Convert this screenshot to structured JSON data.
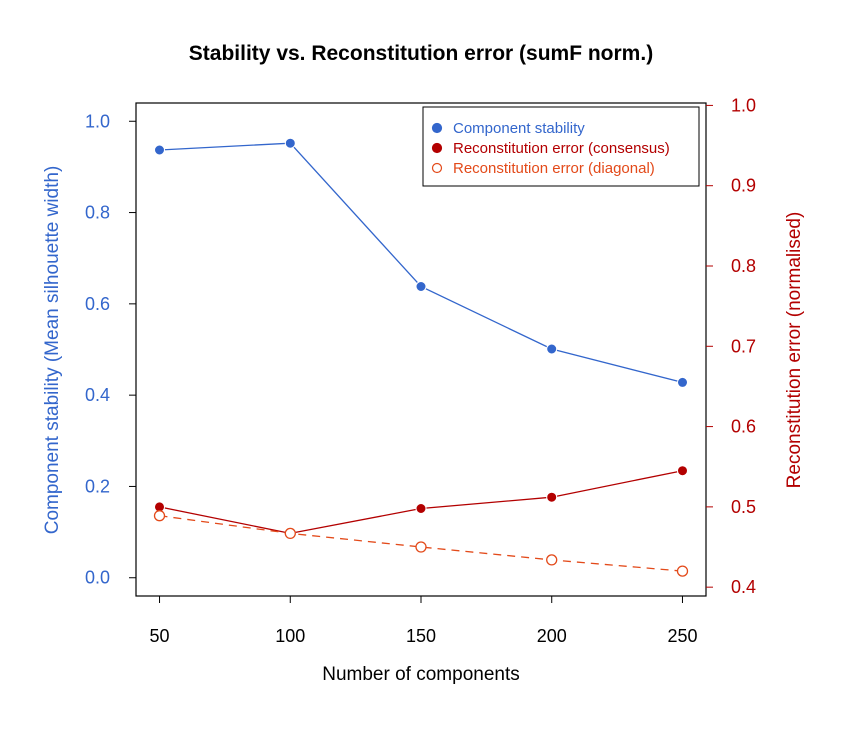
{
  "chart_data": {
    "type": "line",
    "title": "Stability vs. Reconstitution error (sumF norm.)",
    "xlabel": "Number of components",
    "ylabel_left": "Component stability  (Mean silhouette width)",
    "ylabel_right": "Reconstitution error  (normalised)",
    "x": [
      50,
      100,
      150,
      200,
      250
    ],
    "x_ticks": [
      "50",
      "100",
      "150",
      "200",
      "250"
    ],
    "y_left_ticks": [
      "0.0",
      "0.2",
      "0.4",
      "0.6",
      "0.8",
      "1.0"
    ],
    "y_left_tick_values": [
      0.0,
      0.2,
      0.4,
      0.6,
      0.8,
      1.0
    ],
    "y_right_ticks": [
      "0.4",
      "0.5",
      "0.6",
      "0.7",
      "0.8",
      "0.9",
      "1.0"
    ],
    "y_right_tick_values": [
      0.4,
      0.5,
      0.6,
      0.7,
      0.8,
      0.9,
      1.0
    ],
    "ylim_left": [
      -0.04,
      1.04
    ],
    "ylim_right": [
      0.389,
      1.003
    ],
    "xlim": [
      41,
      259
    ],
    "legend_position": "top-right",
    "grid": false,
    "series": [
      {
        "name": "Component stability",
        "axis": "left",
        "values": [
          0.937,
          0.952,
          0.638,
          0.501,
          0.428
        ],
        "color": "#3366cc",
        "line_style": "solid",
        "marker": "filled-circle"
      },
      {
        "name": "Reconstitution error (consensus)",
        "axis": "right",
        "values": [
          0.5,
          0.467,
          0.498,
          0.512,
          0.545
        ],
        "color": "#b30000",
        "line_style": "solid",
        "marker": "filled-circle"
      },
      {
        "name": "Reconstitution error (diagonal)",
        "axis": "right",
        "values": [
          0.489,
          0.467,
          0.45,
          0.434,
          0.42
        ],
        "color": "#e34a1a",
        "line_style": "dashed",
        "marker": "open-circle"
      }
    ],
    "colors": {
      "left_axis": "#3366cc",
      "right_axis": "#b30000"
    }
  }
}
